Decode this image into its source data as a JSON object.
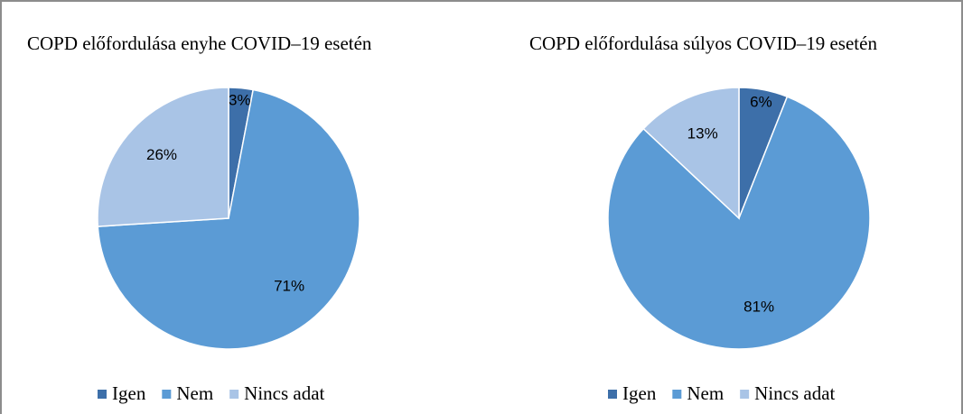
{
  "chart_data": [
    {
      "type": "pie",
      "title": "COPD előfordulása enyhe COVID–19 esetén",
      "categories": [
        "Igen",
        "Nem",
        "Nincs adat"
      ],
      "values": [
        3,
        71,
        26
      ],
      "value_labels": [
        "3%",
        "71%",
        "26%"
      ],
      "colors": [
        "#3d6fa9",
        "#5b9bd5",
        "#a9c4e6"
      ]
    },
    {
      "type": "pie",
      "title": "COPD előfordulása súlyos COVID–19 esetén",
      "categories": [
        "Igen",
        "Nem",
        "Nincs adat"
      ],
      "values": [
        6,
        81,
        13
      ],
      "value_labels": [
        "6%",
        "81%",
        "13%"
      ],
      "colors": [
        "#3d6fa9",
        "#5b9bd5",
        "#a9c4e6"
      ]
    }
  ]
}
